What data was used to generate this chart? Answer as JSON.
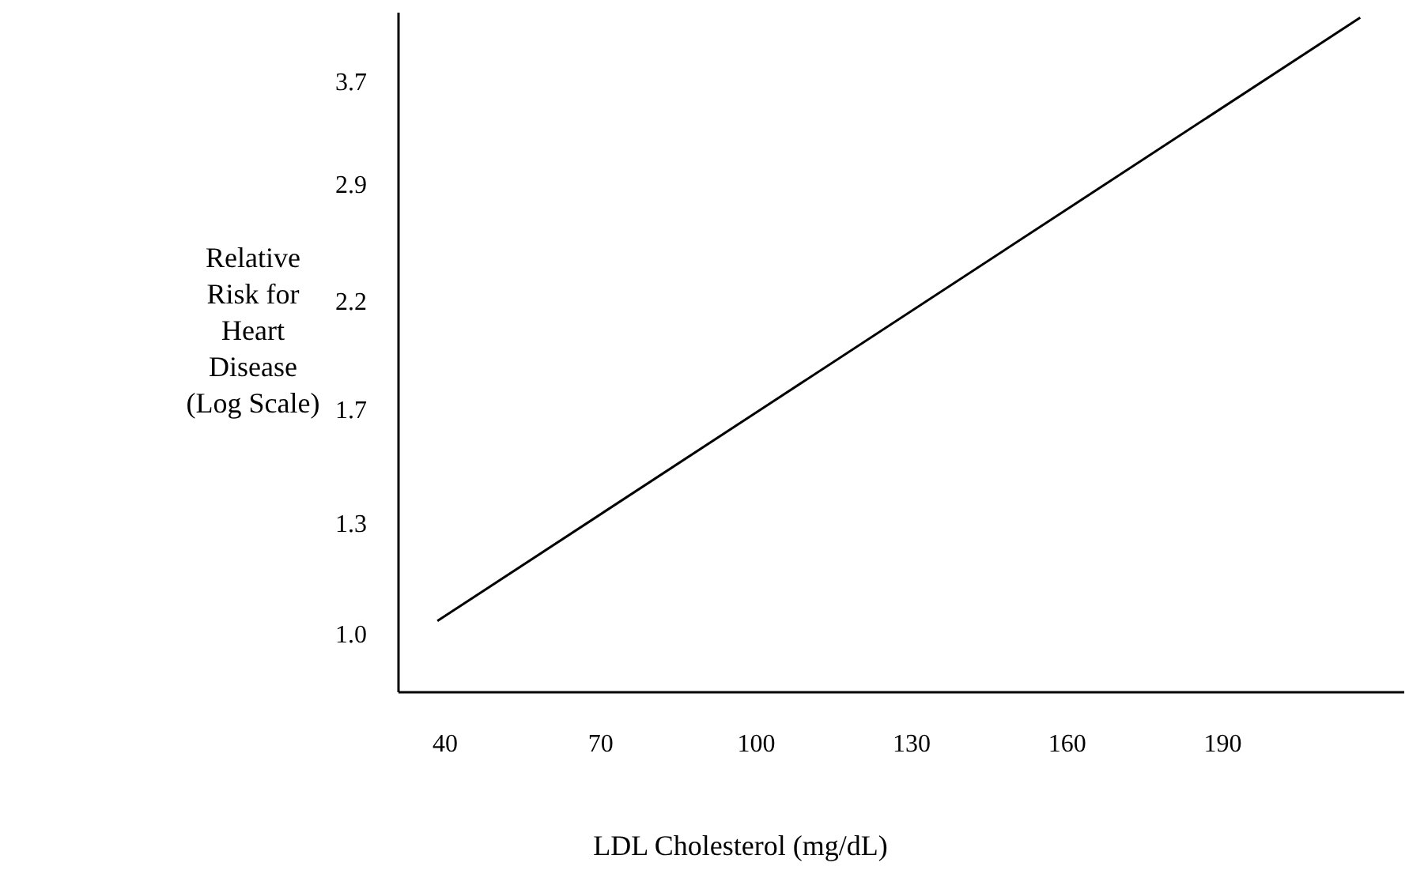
{
  "chart_data": {
    "type": "line",
    "xlabel": "LDL Cholesterol (mg/dL)",
    "ylabel": "Relative Risk for Heart Disease (Log Scale)",
    "x": [
      38.5,
      216.5
    ],
    "series": [
      {
        "color": "#000000",
        "values": [
          1.03,
          4.3
        ]
      }
    ],
    "xlim": [
      31,
      225
    ],
    "xticks": [
      40,
      70,
      100,
      130,
      160,
      190
    ],
    "ylim": [
      0.87,
      4.35
    ],
    "yticks": [
      {
        "value": 1,
        "label": "1.0"
      },
      1.3,
      1.7,
      2.2,
      2.9,
      3.7
    ],
    "log": "y",
    "grid": false,
    "legend": false,
    "marker": "none",
    "line_style": "solid"
  }
}
